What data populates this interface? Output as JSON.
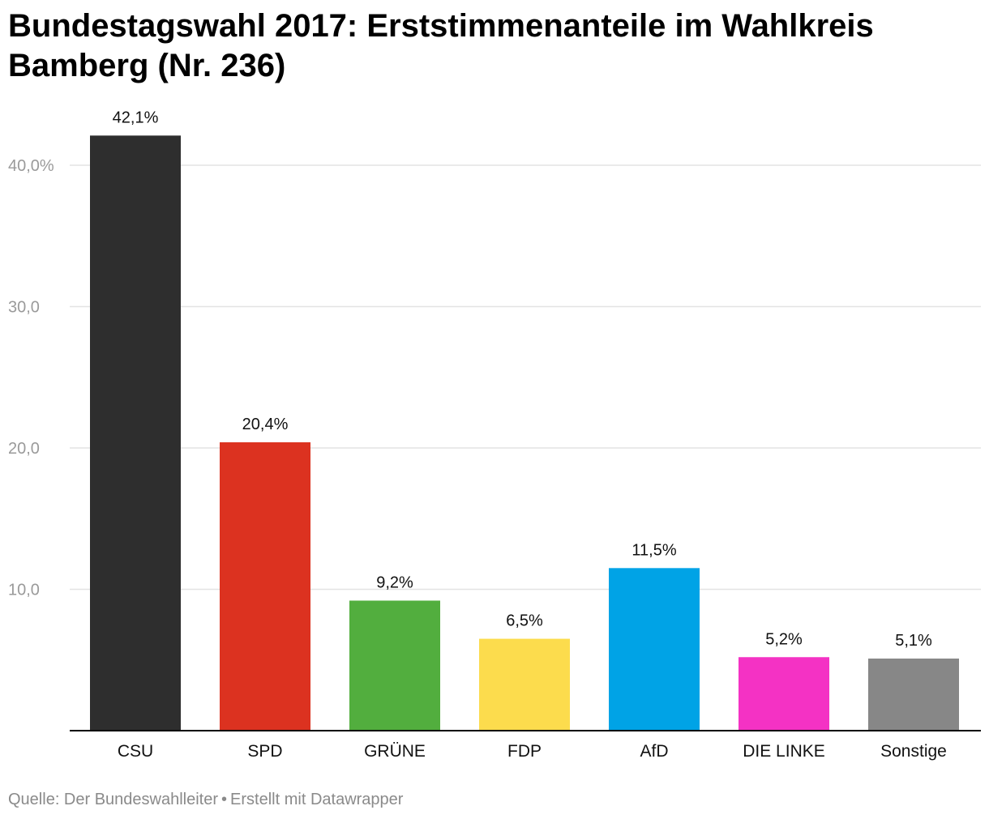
{
  "chart_data": {
    "type": "bar",
    "title": "Bundestagswahl 2017: Erststimmenanteile im Wahlkreis Bamberg (Nr. 236)",
    "categories": [
      "CSU",
      "SPD",
      "GRÜNE",
      "FDP",
      "AfD",
      "DIE LINKE",
      "Sonstige"
    ],
    "values": [
      42.1,
      20.4,
      9.2,
      6.5,
      11.5,
      5.2,
      5.1
    ],
    "value_labels": [
      "42,1%",
      "20,4%",
      "9,2%",
      "6,5%",
      "11,5%",
      "5,2%",
      "5,1%"
    ],
    "colors": [
      "#2e2e2e",
      "#dc3220",
      "#52ae3e",
      "#fcdc4d",
      "#00a3e6",
      "#f432c4",
      "#878787"
    ],
    "yticks": [
      10,
      20,
      30,
      40
    ],
    "ytick_labels": [
      "10,0",
      "20,0",
      "30,0",
      "40,0%"
    ],
    "ylim": [
      0,
      45
    ],
    "xlabel": "",
    "ylabel": "",
    "grid": true
  },
  "footer": {
    "source": "Quelle: Der Bundeswahlleiter",
    "separator": "•",
    "credit": "Erstellt mit Datawrapper"
  }
}
